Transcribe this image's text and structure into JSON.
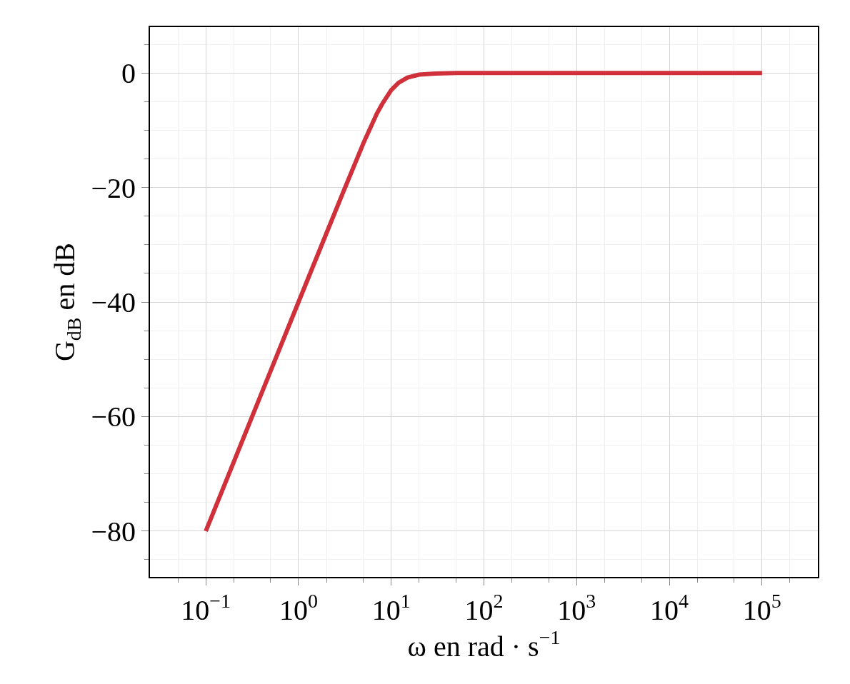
{
  "chart_data": {
    "type": "line",
    "xlabel": "ω en rad · s$^{−1}$",
    "ylabel": "G$_{dB}$ en dB",
    "log": "x",
    "grid": true,
    "marker": "none",
    "line_style": "solid",
    "xlim": [
      0.025,
      400000
    ],
    "ylim": [
      -88,
      8
    ],
    "xticks": [
      {
        "value": 0.1,
        "label": "10$^{−1}$"
      },
      {
        "value": 1,
        "label": "10$^{0}$"
      },
      {
        "value": 10,
        "label": "10$^{1}$"
      },
      {
        "value": 100,
        "label": "10$^{2}$"
      },
      {
        "value": 1000,
        "label": "10$^{3}$"
      },
      {
        "value": 10000,
        "label": "10$^{4}$"
      },
      {
        "value": 100000,
        "label": "10$^{5}$"
      }
    ],
    "yticks": [
      {
        "value": -80,
        "label": "−80"
      },
      {
        "value": -60,
        "label": "−60"
      },
      {
        "value": -40,
        "label": "−40"
      },
      {
        "value": -20,
        "label": "−20"
      },
      0
    ],
    "series": [
      {
        "color": "#d0303a",
        "x": [
          0.1,
          0.3,
          1,
          2,
          3,
          5,
          7,
          8,
          10,
          12,
          15,
          20,
          30,
          50,
          100,
          1000,
          100000
        ],
        "values": [
          -80,
          -60.9,
          -40,
          -28,
          -21,
          -12.3,
          -7.1,
          -5.4,
          -3,
          -1.7,
          -0.8,
          -0.3,
          -0.1,
          0,
          0,
          0,
          0
        ]
      }
    ]
  }
}
